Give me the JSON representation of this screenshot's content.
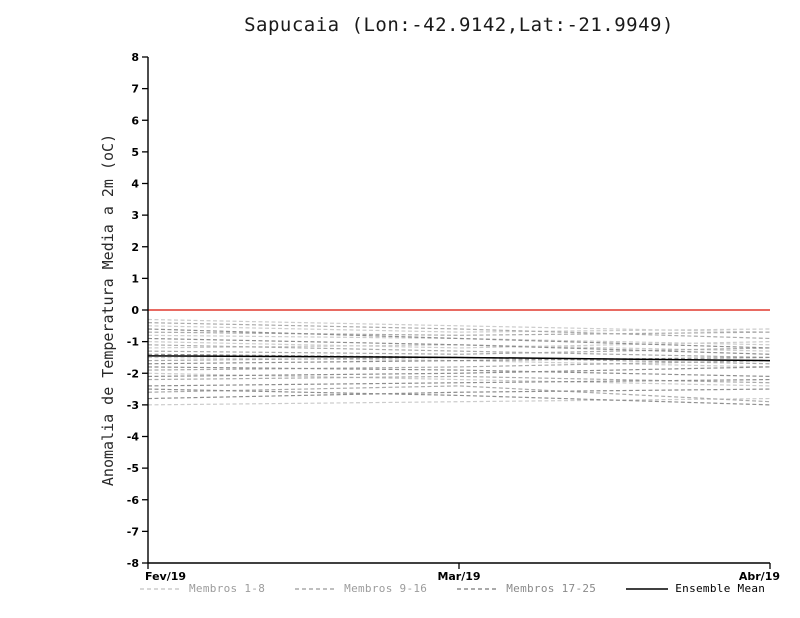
{
  "page": {
    "background": "#ffffff"
  },
  "chart_data": {
    "type": "line",
    "title": "Sapucaia (Lon:-42.9142,Lat:-21.9949)",
    "ylabel": "Anomalia de Temperatura Media a 2m (oC)",
    "x_categories": [
      "Fev/19",
      "Mar/19",
      "Abr/19"
    ],
    "ylim": [
      -8,
      8
    ],
    "ytick_step": 1,
    "ytick_labels": [
      "8",
      "7",
      "6",
      "5",
      "4",
      "3",
      "2",
      "1",
      "0",
      "-1",
      "-2",
      "-3",
      "-4",
      "-5",
      "-6",
      "-7",
      "-8"
    ],
    "grid": false,
    "zero_line_color": "#e0392e",
    "axis_color": "#000000",
    "groups": [
      {
        "name": "Membros 1-8",
        "color": "#cccccc",
        "dash": "4,2.5",
        "series": [
          [
            -0.3,
            -0.5,
            -0.7
          ],
          [
            -0.5,
            -0.7,
            -0.6
          ],
          [
            -0.8,
            -0.9,
            -1.1
          ],
          [
            -1.0,
            -1.2,
            -1.0
          ],
          [
            -1.2,
            -1.1,
            -1.3
          ],
          [
            -1.5,
            -1.6,
            -1.8
          ],
          [
            -2.0,
            -2.2,
            -2.4
          ],
          [
            -3.0,
            -2.9,
            -2.8
          ]
        ]
      },
      {
        "name": "Membros 9-16",
        "color": "#aaaaaa",
        "dash": "4,2.5",
        "series": [
          [
            -0.4,
            -0.6,
            -0.9
          ],
          [
            -0.7,
            -0.8,
            -0.7
          ],
          [
            -1.1,
            -1.3,
            -1.5
          ],
          [
            -1.3,
            -1.4,
            -1.2
          ],
          [
            -1.6,
            -1.5,
            -1.7
          ],
          [
            -1.9,
            -1.8,
            -1.6
          ],
          [
            -2.2,
            -2.1,
            -2.3
          ],
          [
            -2.6,
            -2.4,
            -2.9
          ]
        ]
      },
      {
        "name": "Membros 17-25",
        "color": "#8e8e8e",
        "dash": "4,2.5",
        "series": [
          [
            -0.6,
            -0.9,
            -1.2
          ],
          [
            -0.9,
            -1.1,
            -1.4
          ],
          [
            -1.4,
            -1.5,
            -1.6
          ],
          [
            -1.7,
            -1.6,
            -1.5
          ],
          [
            -1.8,
            -1.9,
            -2.1
          ],
          [
            -2.1,
            -2.0,
            -1.8
          ],
          [
            -2.4,
            -2.3,
            -2.2
          ],
          [
            -2.8,
            -2.6,
            -2.5
          ],
          [
            -2.5,
            -2.7,
            -3.0
          ]
        ]
      }
    ],
    "mean": {
      "name": "Ensemble Mean",
      "color": "#000000",
      "values": [
        -1.45,
        -1.5,
        -1.6
      ]
    },
    "legend": [
      {
        "label": "Membros 1-8",
        "color": "#cccccc",
        "label_color": "#9c9c9c",
        "dashed": true
      },
      {
        "label": "Membros 9-16",
        "color": "#aaaaaa",
        "label_color": "#9c9c9c",
        "dashed": true
      },
      {
        "label": "Membros 17-25",
        "color": "#8e8e8e",
        "label_color": "#8a8a8a",
        "dashed": true
      },
      {
        "label": "Ensemble Mean",
        "color": "#000000",
        "label_color": "#000000",
        "dashed": false
      }
    ]
  }
}
